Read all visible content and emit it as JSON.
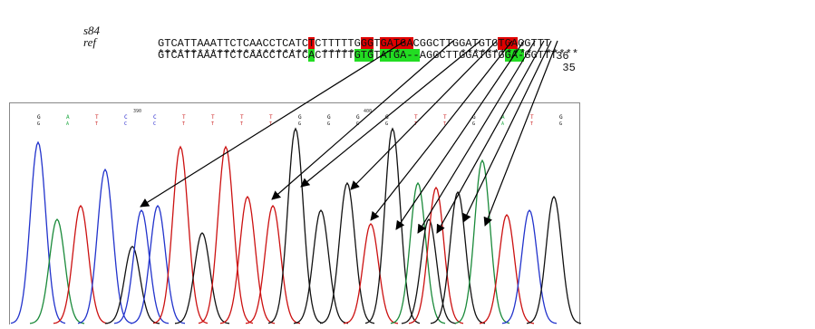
{
  "alignment": {
    "rows": [
      {
        "name": "s84",
        "sequence": "GTCATTAAATTCTCAACCTCATCTCTTTTTGGGTGATGACGGCTTGGATGTGTGAGGTTT",
        "end_number": "36",
        "highlights": [
          {
            "start": 23,
            "end": 24,
            "color": "#e00000"
          },
          {
            "start": 31,
            "end": 33,
            "color": "#e00000"
          },
          {
            "start": 34,
            "end": 39,
            "color": "#e00000"
          },
          {
            "start": 52,
            "end": 55,
            "color": "#e00000"
          }
        ]
      },
      {
        "name": "ref",
        "sequence": "GTCATTAAATTCTCAACCTCATCACTTTTTGTGTATGA--AGGCTTGGATGTGGA-GGTTT",
        "end_number": "35",
        "highlights": [
          {
            "start": 23,
            "end": 24,
            "color": "#22dd22"
          },
          {
            "start": 30,
            "end": 33,
            "color": "#22dd22"
          },
          {
            "start": 34,
            "end": 40,
            "color": "#22dd22"
          },
          {
            "start": 53,
            "end": 56,
            "color": "#22dd22"
          }
        ]
      }
    ],
    "consensus": "***********************  *****  *   *         ***********  *****"
  },
  "chromatogram": {
    "base_calls": [
      "G",
      "A",
      "T",
      "C",
      "C",
      "T",
      "T",
      "T",
      "T",
      "G",
      "G",
      "G",
      "G",
      "T",
      "T",
      "G",
      "A",
      "T",
      "G"
    ],
    "base_call_colors": [
      "#000000",
      "#22aa44",
      "#cc2222",
      "#2222cc",
      "#2222cc",
      "#cc2222",
      "#cc2222",
      "#cc2222",
      "#cc2222",
      "#000000",
      "#000000",
      "#000000",
      "#000000",
      "#cc2222",
      "#cc2222",
      "#000000",
      "#22aa44",
      "#cc2222",
      "#000000"
    ],
    "position_markers": [
      "390",
      "400"
    ],
    "trace_colors": {
      "A": "#1a8a3a",
      "C": "#2233cc",
      "G": "#111111",
      "T": "#cc1111"
    }
  }
}
